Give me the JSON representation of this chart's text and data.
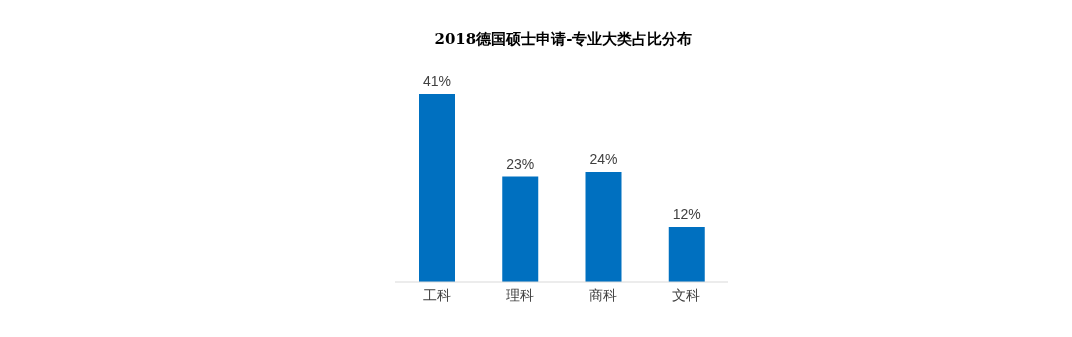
{
  "chart_data": {
    "type": "bar",
    "title": "2018德国硕士申请-专业大类占比分布",
    "categories": [
      "工科",
      "理科",
      "商科",
      "文科"
    ],
    "values": [
      41,
      23,
      24,
      12
    ],
    "value_labels": [
      "41%",
      "23%",
      "24%",
      "12%"
    ],
    "color": "#0070c0"
  }
}
